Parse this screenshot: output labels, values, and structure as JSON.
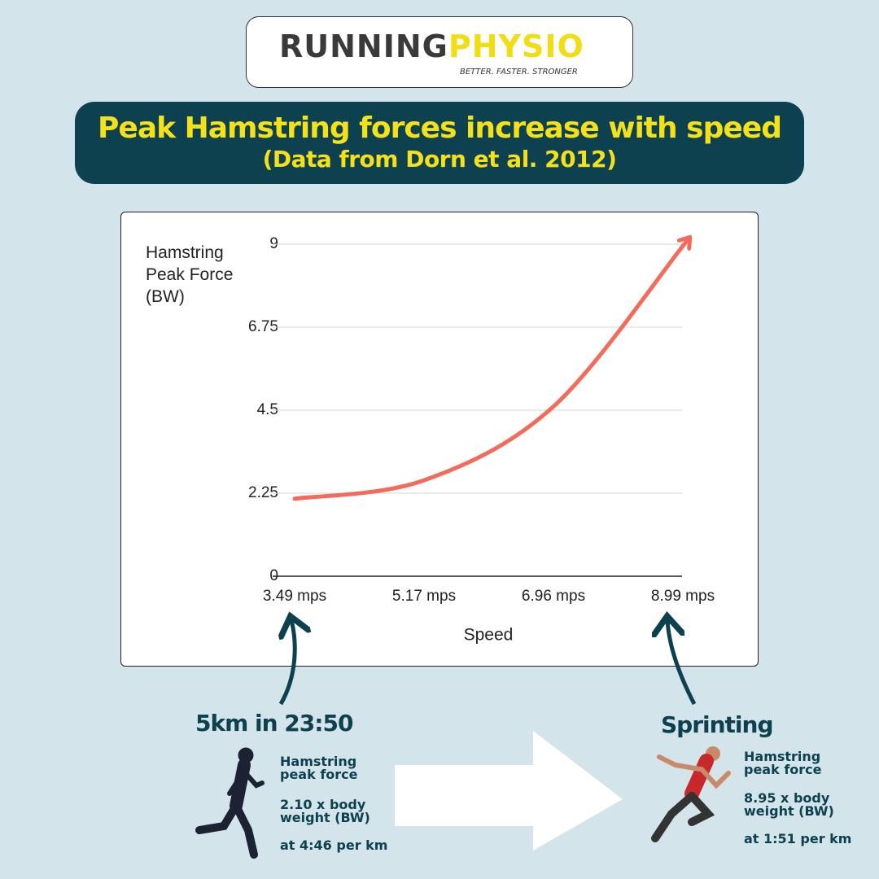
{
  "logo": {
    "brand_1": "RUNNING",
    "brand_2": "PHYSIO",
    "tagline": "BETTER. FASTER. STRONGER"
  },
  "header": {
    "title": "Peak Hamstring forces increase with speed",
    "subtitle": "(Data from Dorn et al. 2012)"
  },
  "chart_data": {
    "type": "line",
    "ylabel": "Hamstring Peak Force (BW)",
    "xlabel": "Speed",
    "categories": [
      "3.49 mps",
      "5.17 mps",
      "6.96 mps",
      "8.99 mps"
    ],
    "series": [
      {
        "color": "#f26b5b",
        "values": [
          2.1,
          2.6,
          4.6,
          8.95
        ]
      }
    ],
    "ylim": [
      0,
      9
    ],
    "yticks": [
      0,
      2.25,
      4.5,
      6.75,
      9
    ],
    "grid": true
  },
  "captions": [
    {
      "title": "5km in 23:50",
      "line_1": "Hamstring peak force",
      "line_2": "2.10 x body weight (BW)",
      "line_3": "at 4:46 per km"
    },
    {
      "title": "Sprinting",
      "line_1": "Hamstring peak force",
      "line_2": "8.95 x body weight (BW)",
      "line_3": "at 1:51 per km"
    }
  ]
}
